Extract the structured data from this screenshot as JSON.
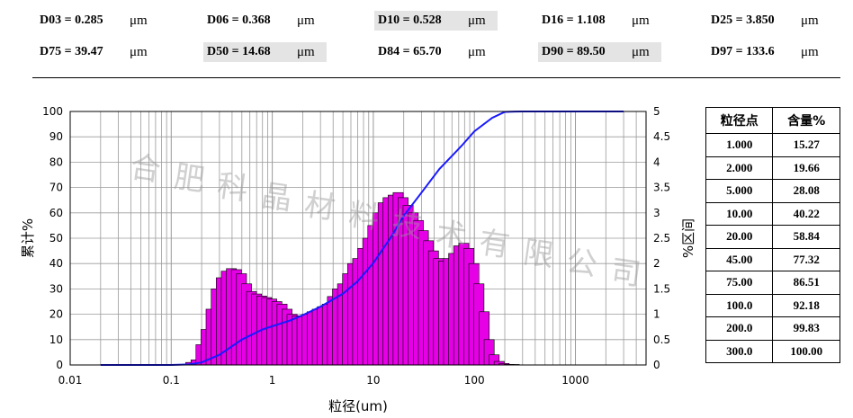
{
  "stats": [
    {
      "label": "D03 = 0.285",
      "unit": "μm",
      "highlight": false
    },
    {
      "label": "D06 = 0.368",
      "unit": "μm",
      "highlight": false
    },
    {
      "label": "D10 = 0.528",
      "unit": "μm",
      "highlight": true
    },
    {
      "label": "D16 = 1.108",
      "unit": "μm",
      "highlight": false
    },
    {
      "label": "D25 = 3.850",
      "unit": "μm",
      "highlight": false
    },
    {
      "label": "D75 = 39.47",
      "unit": "μm",
      "highlight": false
    },
    {
      "label": "D50 = 14.68",
      "unit": "μm",
      "highlight": true
    },
    {
      "label": "D84 = 65.70",
      "unit": "μm",
      "highlight": false
    },
    {
      "label": "D90 = 89.50",
      "unit": "μm",
      "highlight": true
    },
    {
      "label": "D97 = 133.6",
      "unit": "μm",
      "highlight": false
    }
  ],
  "table": {
    "headers": [
      "粒径点",
      "含量%"
    ],
    "rows": [
      [
        "1.000",
        "15.27"
      ],
      [
        "2.000",
        "19.66"
      ],
      [
        "5.000",
        "28.08"
      ],
      [
        "10.00",
        "40.22"
      ],
      [
        "20.00",
        "58.84"
      ],
      [
        "45.00",
        "77.32"
      ],
      [
        "75.00",
        "86.51"
      ],
      [
        "100.0",
        "92.18"
      ],
      [
        "200.0",
        "99.83"
      ],
      [
        "300.0",
        "100.00"
      ]
    ]
  },
  "watermark": [
    "合",
    "肥",
    "科",
    "晶",
    "材",
    "料",
    "技",
    "术",
    "有",
    "限",
    "公",
    "司"
  ],
  "chart_data": {
    "type": "bar",
    "xlabel": "粒径(um)",
    "ylabel": "累计%",
    "y2label": "%区间",
    "xscale": "log",
    "xlim": [
      0.01,
      5000
    ],
    "ylim": [
      0,
      100
    ],
    "y2lim": [
      0,
      5
    ],
    "xticks": [
      "0.01",
      "0.1",
      "1",
      "10",
      "100",
      "1000"
    ],
    "yticks": [
      "0",
      "10",
      "20",
      "30",
      "40",
      "50",
      "60",
      "70",
      "80",
      "90",
      "100"
    ],
    "y2ticks": [
      "0",
      "0.5",
      "1",
      "1.5",
      "2",
      "2.5",
      "3",
      "3.5",
      "4",
      "4.5",
      "5"
    ],
    "grid": true,
    "colors": {
      "bars": "#e600e6",
      "bar_edge": "#000000",
      "cumulative": "#1a1aff",
      "grid": "#9a9a9a"
    },
    "histogram": {
      "x": [
        0.156,
        0.176,
        0.197,
        0.221,
        0.248,
        0.279,
        0.313,
        0.351,
        0.394,
        0.442,
        0.496,
        0.556,
        0.624,
        0.7,
        0.786,
        0.881,
        0.989,
        1.11,
        1.25,
        1.4,
        1.57,
        1.76,
        1.97,
        2.21,
        2.48,
        2.79,
        3.13,
        3.51,
        3.94,
        4.42,
        4.96,
        5.56,
        6.24,
        7.0,
        7.86,
        8.81,
        9.89,
        11.1,
        12.5,
        14.0,
        15.7,
        17.6,
        19.7,
        22.1,
        24.8,
        27.9,
        31.3,
        35.1,
        39.4,
        44.2,
        49.6,
        55.6,
        62.4,
        70.0,
        78.6,
        88.1,
        98.9,
        111,
        125,
        140,
        157,
        176,
        197,
        221,
        248
      ],
      "values": [
        0.05,
        0.1,
        0.4,
        0.7,
        1.1,
        1.5,
        1.72,
        1.85,
        1.9,
        1.88,
        1.8,
        1.6,
        1.45,
        1.4,
        1.36,
        1.33,
        1.3,
        1.25,
        1.2,
        1.1,
        1.0,
        0.97,
        0.97,
        1.0,
        1.05,
        1.1,
        1.15,
        1.2,
        1.35,
        1.5,
        1.6,
        1.8,
        2.0,
        2.1,
        2.3,
        2.5,
        2.75,
        3.0,
        3.2,
        3.3,
        3.35,
        3.4,
        3.3,
        3.15,
        3.0,
        2.85,
        2.65,
        2.45,
        2.25,
        2.1,
        2.05,
        2.1,
        2.2,
        2.35,
        2.4,
        2.3,
        2.0,
        1.6,
        1.05,
        0.5,
        0.2,
        0.07,
        0.03,
        0.01,
        0.01
      ]
    },
    "cumulative": {
      "x": [
        0.02,
        0.1,
        0.15,
        0.2,
        0.3,
        0.5,
        0.8,
        1.0,
        1.5,
        2.0,
        3.0,
        5.0,
        7.0,
        10.0,
        15.0,
        20.0,
        30.0,
        45.0,
        60.0,
        75.0,
        100.0,
        150.0,
        200.0,
        250.0,
        300.0,
        1000.0,
        3000.0
      ],
      "y": [
        0,
        0,
        0.2,
        1,
        4,
        10,
        14,
        15.27,
        17.5,
        19.66,
        23,
        28.08,
        33,
        40.22,
        50.5,
        58.84,
        68,
        77.32,
        82.5,
        86.51,
        92.18,
        97.5,
        99.83,
        99.97,
        100.0,
        100.0,
        100.0
      ]
    }
  }
}
